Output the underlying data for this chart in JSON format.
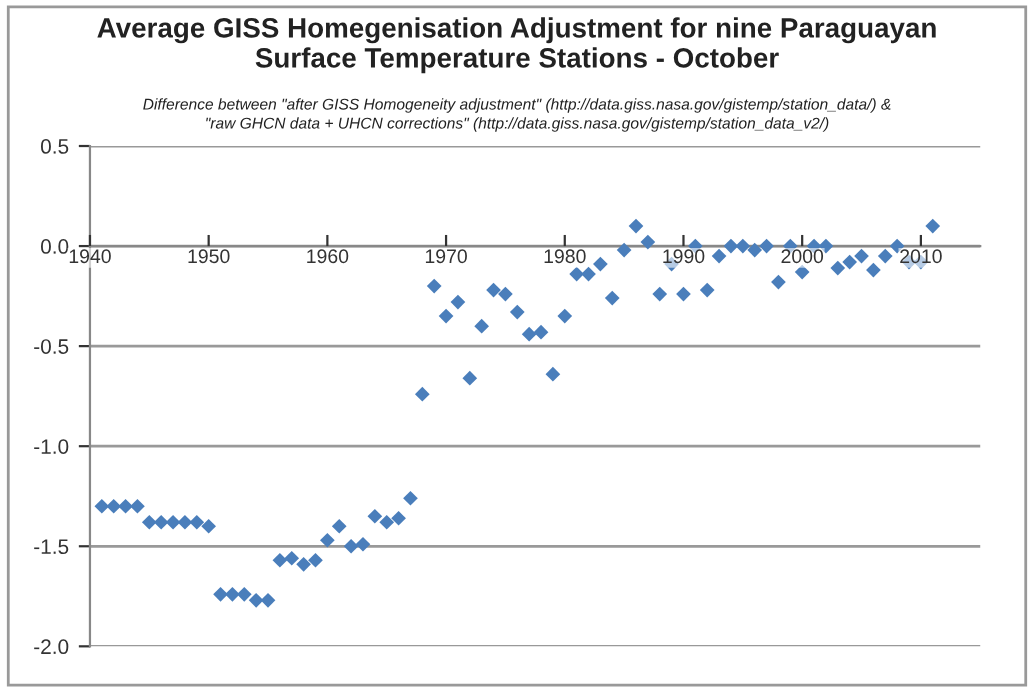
{
  "chart_data": {
    "type": "scatter",
    "title": "Average GISS Homegenisation Adjustment for nine Paraguayan\nSurface Temperature Stations - October",
    "subtitle": "Difference between \"after GISS Homogeneity adjustment\" (http://data.giss.nasa.gov/gistemp/station_data/) &\n\"raw GHCN data + UHCN corrections\" (http://data.giss.nasa.gov/gistemp/station_data_v2/)",
    "x": [
      1941,
      1942,
      1943,
      1944,
      1945,
      1946,
      1947,
      1948,
      1949,
      1950,
      1951,
      1952,
      1953,
      1954,
      1955,
      1956,
      1957,
      1958,
      1959,
      1960,
      1961,
      1962,
      1963,
      1964,
      1965,
      1966,
      1967,
      1968,
      1969,
      1970,
      1971,
      1972,
      1973,
      1974,
      1975,
      1976,
      1977,
      1978,
      1979,
      1980,
      1981,
      1982,
      1983,
      1984,
      1985,
      1986,
      1987,
      1988,
      1989,
      1990,
      1991,
      1992,
      1993,
      1994,
      1995,
      1996,
      1997,
      1998,
      1999,
      2000,
      2001,
      2002,
      2003,
      2004,
      2005,
      2006,
      2007,
      2008,
      2009,
      2010,
      2011
    ],
    "series": [
      {
        "color": "#4a7ebb",
        "values": [
          -1.3,
          -1.3,
          -1.3,
          -1.3,
          -1.38,
          -1.38,
          -1.38,
          -1.38,
          -1.38,
          -1.4,
          -1.74,
          -1.74,
          -1.74,
          -1.77,
          -1.77,
          -1.57,
          -1.56,
          -1.59,
          -1.57,
          -1.47,
          -1.4,
          -1.5,
          -1.49,
          -1.35,
          -1.38,
          -1.36,
          -1.26,
          -0.74,
          -0.2,
          -0.35,
          -0.28,
          -0.66,
          -0.4,
          -0.22,
          -0.24,
          -0.33,
          -0.44,
          -0.43,
          -0.64,
          -0.35,
          -0.14,
          -0.14,
          -0.09,
          -0.26,
          -0.02,
          0.1,
          0.02,
          -0.24,
          -0.09,
          -0.24,
          0.0,
          -0.22,
          -0.05,
          0.0,
          0.0,
          -0.02,
          0.0,
          -0.18,
          0.0,
          -0.13,
          0.0,
          0.0,
          -0.11,
          -0.08,
          -0.05,
          -0.12,
          -0.05,
          0.0,
          -0.08,
          -0.08,
          0.1
        ]
      }
    ],
    "marker": "diamond",
    "xlim": [
      1940,
      2015
    ],
    "xticks": [
      1940,
      1950,
      1960,
      1970,
      1980,
      1990,
      2000,
      2010
    ],
    "ylim": [
      -2.0,
      0.5
    ],
    "yticks": [
      {
        "value": 0.5,
        "label": "0.5"
      },
      {
        "value": 0.0,
        "label": "0.0"
      },
      {
        "value": -0.5,
        "label": "-0.5"
      },
      {
        "value": -1.0,
        "label": "-1.0"
      },
      {
        "value": -1.5,
        "label": "-1.5"
      },
      {
        "value": -2.0,
        "label": "-2.0"
      }
    ],
    "grid": "y"
  }
}
